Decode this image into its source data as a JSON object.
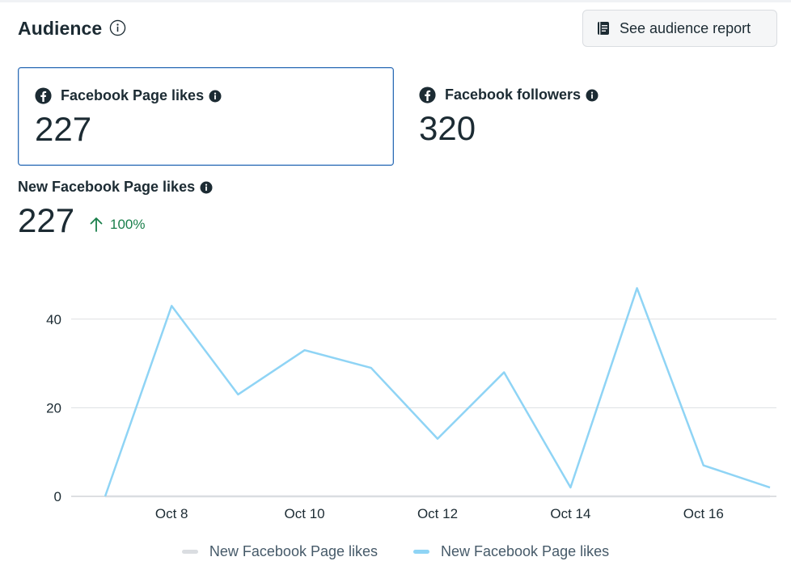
{
  "header": {
    "title": "Audience",
    "info_icon": "info-outline-icon",
    "report_button": {
      "label": "See audience report",
      "icon": "report-book-icon"
    }
  },
  "cards": [
    {
      "label": "Facebook Page likes",
      "value": "227",
      "icon": "facebook-icon",
      "info_icon": "info-solid-icon",
      "selected": true
    },
    {
      "label": "Facebook followers",
      "value": "320",
      "icon": "facebook-icon",
      "info_icon": "info-solid-icon",
      "selected": false
    }
  ],
  "metric": {
    "label": "New Facebook Page likes",
    "value": "227",
    "change": "100%",
    "change_icon": "arrow-up-icon"
  },
  "colors": {
    "accent_line": "#8fd4f5",
    "comparison_line": "#dadde1",
    "positive": "#1a7f4b",
    "grid": "#dddfe2",
    "axis_text": "#1c2b33"
  },
  "chart_data": {
    "type": "line",
    "x": [
      "Oct 7",
      "Oct 8",
      "Oct 9",
      "Oct 10",
      "Oct 11",
      "Oct 12",
      "Oct 13",
      "Oct 14",
      "Oct 15",
      "Oct 16",
      "Oct 17"
    ],
    "x_tick_labels": [
      "Oct 8",
      "Oct 10",
      "Oct 12",
      "Oct 14",
      "Oct 16"
    ],
    "y_ticks": [
      0,
      20,
      40
    ],
    "ylim": [
      0,
      50
    ],
    "series": [
      {
        "name": "New Facebook Page likes",
        "role": "comparison",
        "values": [
          0,
          0,
          0,
          0,
          0,
          0,
          0,
          0,
          0,
          0,
          0
        ]
      },
      {
        "name": "New Facebook Page likes",
        "role": "current",
        "values": [
          0,
          43,
          23,
          33,
          29,
          13,
          28,
          2,
          47,
          7,
          2
        ]
      }
    ],
    "legend": [
      {
        "label": "New Facebook Page likes",
        "color": "#dadde1"
      },
      {
        "label": "New Facebook Page likes",
        "color": "#8fd4f5"
      }
    ],
    "legend_position": "bottom-center",
    "grid": true
  }
}
